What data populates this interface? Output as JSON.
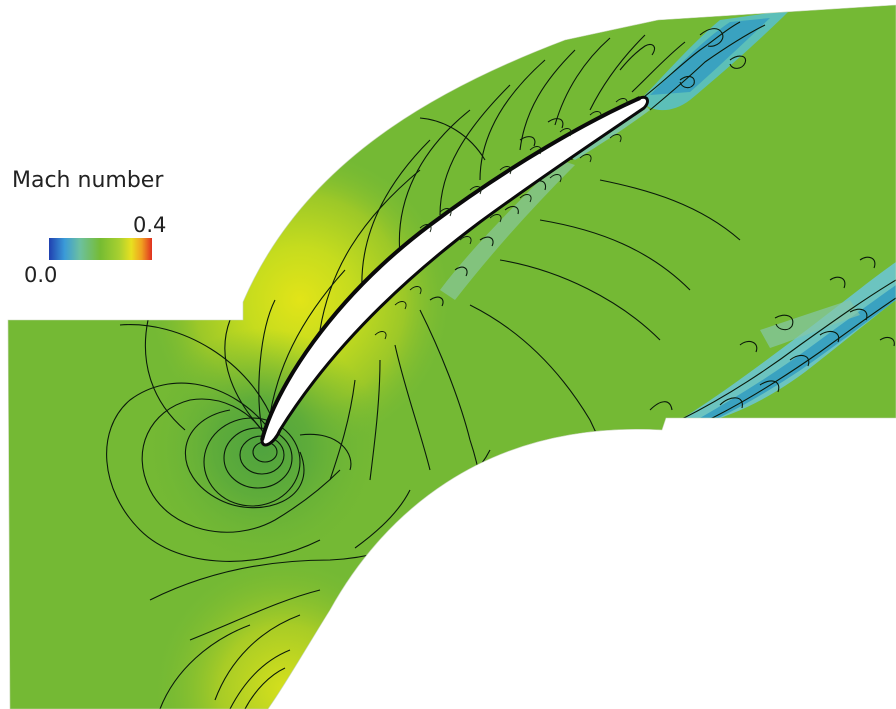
{
  "legend": {
    "title": "Mach number",
    "min_label": "0.0",
    "max_label": "0.4",
    "stops": [
      "#2040b0",
      "#3a9ad8",
      "#6cc0a0",
      "#76bc32",
      "#a8d030",
      "#e8e020",
      "#f0a020",
      "#e03020"
    ]
  },
  "colors": {
    "field_base": "#74b934",
    "field_light": "#98c828",
    "field_yellow": "#d7e21b",
    "field_dark": "#5aa838",
    "wake_cyan": "#6dc8c8",
    "wake_blue": "#3aa0b8",
    "blade": "#ffffff",
    "contour": "#0a1a0a"
  }
}
